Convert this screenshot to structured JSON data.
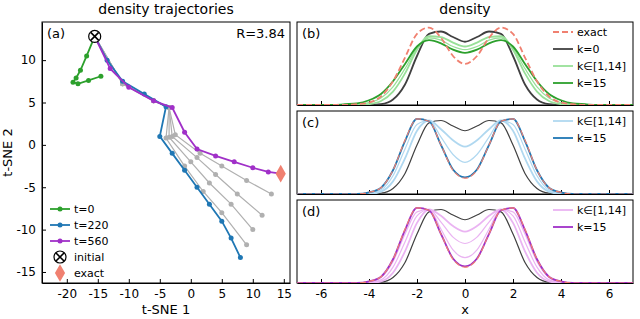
{
  "chart_data": [
    {
      "type": "line",
      "title": "density trajectories",
      "x_label": "t-SNE 1",
      "y_label": "t-SNE 2",
      "annotations": [
        "(a)",
        "R=3.84"
      ],
      "xlim": [
        -24,
        16
      ],
      "ylim": [
        -16.3,
        14.5
      ],
      "xticks": [
        -20,
        -15,
        -10,
        -5,
        0,
        5,
        10,
        15
      ],
      "yticks": [
        -15,
        -10,
        -5,
        0,
        5,
        10
      ],
      "legend": "lower left",
      "series": [
        {
          "color": "#b0b0b0",
          "marker": "circle",
          "x": [
            -15.5,
            -11,
            -6,
            -3.5,
            -4,
            -1,
            2,
            5,
            9
          ],
          "values": [
            12.8,
            7.2,
            5.2,
            4.4,
            0.8,
            -2.5,
            -5.5,
            -8,
            -11.8
          ]
        },
        {
          "color": "#b0b0b0",
          "marker": "circle",
          "x": [
            -15.5,
            -11,
            -6,
            -3.5,
            -3.5,
            0,
            3,
            6.5,
            10
          ],
          "values": [
            12.8,
            7.2,
            5.2,
            4.4,
            0.9,
            -2,
            -4.5,
            -7,
            -10
          ]
        },
        {
          "color": "#b0b0b0",
          "marker": "circle",
          "x": [
            -15.5,
            -11,
            -6,
            -3.5,
            -3,
            1,
            4,
            7.5,
            11.5
          ],
          "values": [
            12.8,
            7.2,
            5.2,
            4.4,
            1,
            -1.5,
            -3.5,
            -5.8,
            -8.3
          ]
        },
        {
          "color": "#b0b0b0",
          "marker": "circle",
          "x": [
            -15.5,
            -11,
            -6,
            -3.5,
            -2.5,
            1.5,
            5,
            9,
            13
          ],
          "values": [
            12.8,
            7.2,
            5.2,
            4.4,
            1.2,
            -1,
            -2.5,
            -4.2,
            -5.8
          ]
        },
        {
          "name": "t=0",
          "color": "#2ca02c",
          "marker": "circle",
          "x": [
            -15.5,
            -16.8,
            -17.8,
            -18.5,
            -19,
            -18.2,
            -16.5,
            -14.5
          ],
          "values": [
            12.8,
            10.5,
            8.8,
            7.9,
            7.4,
            7.2,
            7.6,
            8.1
          ]
        },
        {
          "name": "t=220",
          "color": "#1f77b4",
          "marker": "circle",
          "x": [
            -15.5,
            -13.5,
            -11,
            -7.5,
            -4,
            -5,
            -3,
            -1,
            1,
            3,
            5,
            6.5,
            8
          ],
          "values": [
            12.8,
            10,
            7.5,
            6,
            4.5,
            1,
            -1,
            -3,
            -5,
            -7,
            -9,
            -11,
            -13.3
          ]
        },
        {
          "name": "t=560",
          "color": "#a030c8",
          "marker": "circle",
          "x": [
            -15.5,
            -13,
            -10,
            -6,
            -3,
            -1,
            1,
            4,
            7,
            10,
            12.5,
            14.5
          ],
          "values": [
            12.8,
            9,
            6.8,
            5.2,
            4.4,
            1.5,
            -0.5,
            -1.3,
            -2,
            -2.7,
            -3.2,
            -3.4
          ]
        },
        {
          "name": "initial",
          "type": "scatter",
          "marker": "x",
          "color": "#000000",
          "x": [
            -15.5
          ],
          "values": [
            12.8
          ]
        },
        {
          "name": "exact",
          "type": "scatter",
          "marker": "diamond",
          "color": "#f08070",
          "x": [
            14.5
          ],
          "values": [
            -3.4
          ]
        }
      ]
    },
    {
      "type": "line",
      "title": "density",
      "annotations": [
        "(b)"
      ],
      "x": [
        -7,
        -6.5,
        -6,
        -5.5,
        -5,
        -4.5,
        -4,
        -3.5,
        -3,
        -2.5,
        -2,
        -1.5,
        -1,
        -0.5,
        0,
        0.5,
        1,
        1.5,
        2,
        2.5,
        3,
        3.5,
        4,
        4.5,
        5,
        5.5,
        6,
        6.5,
        7
      ],
      "xlim": [
        -7,
        7
      ],
      "ylim": [
        0,
        1.05
      ],
      "xticks": [
        -6,
        -4,
        -2,
        0,
        2,
        4,
        6
      ],
      "tick_labels": false,
      "legend": "upper right",
      "series": [
        {
          "name": "exact",
          "color": "#f08070",
          "line_style": "dashed",
          "values": [
            0,
            0,
            0,
            0,
            0,
            0.01,
            0.03,
            0.11,
            0.3,
            0.6,
            0.9,
            0.98,
            0.85,
            0.62,
            0.52,
            0.62,
            0.85,
            0.98,
            0.9,
            0.6,
            0.3,
            0.11,
            0.03,
            0.01,
            0,
            0,
            0,
            0,
            0
          ]
        },
        {
          "name": "k=0",
          "color": "#404040",
          "values": [
            0,
            0,
            0,
            0,
            0,
            0,
            0,
            0.01,
            0.07,
            0.26,
            0.62,
            0.9,
            0.93,
            0.86,
            0.8,
            0.86,
            0.93,
            0.9,
            0.62,
            0.26,
            0.07,
            0.01,
            0,
            0,
            0,
            0,
            0,
            0,
            0
          ]
        },
        {
          "name": "k∈[1,14]",
          "color": "#98e098",
          "values": [
            0,
            0,
            0,
            0,
            0,
            0,
            0.01,
            0.05,
            0.17,
            0.4,
            0.7,
            0.87,
            0.86,
            0.79,
            0.74,
            0.79,
            0.86,
            0.87,
            0.7,
            0.4,
            0.17,
            0.05,
            0.01,
            0,
            0,
            0,
            0,
            0,
            0
          ]
        },
        {
          "color": "#98e098",
          "values": [
            0,
            0,
            0,
            0,
            0,
            0.01,
            0.03,
            0.09,
            0.23,
            0.46,
            0.72,
            0.85,
            0.82,
            0.74,
            0.7,
            0.74,
            0.82,
            0.85,
            0.72,
            0.46,
            0.23,
            0.09,
            0.03,
            0.01,
            0,
            0,
            0,
            0,
            0
          ]
        },
        {
          "name": "k=15",
          "color": "#2ca02c",
          "values": [
            0,
            0,
            0,
            0,
            0.01,
            0.02,
            0.06,
            0.14,
            0.3,
            0.52,
            0.74,
            0.82,
            0.78,
            0.7,
            0.66,
            0.7,
            0.78,
            0.82,
            0.74,
            0.52,
            0.3,
            0.14,
            0.06,
            0.02,
            0.01,
            0,
            0,
            0,
            0
          ]
        }
      ]
    },
    {
      "type": "line",
      "annotations": [
        "(c)"
      ],
      "x": [
        -7,
        -6.5,
        -6,
        -5.5,
        -5,
        -4.5,
        -4,
        -3.5,
        -3,
        -2.5,
        -2,
        -1.5,
        -1,
        -0.5,
        0,
        0.5,
        1,
        1.5,
        2,
        2.5,
        3,
        3.5,
        4,
        4.5,
        5,
        5.5,
        6,
        6.5,
        7
      ],
      "xlim": [
        -7,
        7
      ],
      "ylim": [
        0,
        1.05
      ],
      "xticks": [
        -6,
        -4,
        -2,
        0,
        2,
        4,
        6
      ],
      "tick_labels": false,
      "legend": "upper right",
      "series": [
        {
          "color": "#f08070",
          "line_style": "dashed",
          "values": [
            0,
            0,
            0,
            0,
            0,
            0,
            0.02,
            0.08,
            0.3,
            0.68,
            0.95,
            0.92,
            0.62,
            0.3,
            0.2,
            0.3,
            0.62,
            0.92,
            0.95,
            0.68,
            0.3,
            0.08,
            0.02,
            0,
            0,
            0,
            0,
            0,
            0
          ]
        },
        {
          "color": "#404040",
          "values": [
            0,
            0,
            0,
            0,
            0,
            0,
            0,
            0.01,
            0.07,
            0.26,
            0.62,
            0.9,
            0.93,
            0.86,
            0.8,
            0.86,
            0.93,
            0.9,
            0.62,
            0.26,
            0.07,
            0.01,
            0,
            0,
            0,
            0,
            0,
            0,
            0
          ]
        },
        {
          "name": "k∈[1,14]",
          "color": "#b0d8f0",
          "values": [
            0,
            0,
            0,
            0,
            0,
            0,
            0,
            0.03,
            0.16,
            0.45,
            0.8,
            0.93,
            0.82,
            0.68,
            0.6,
            0.68,
            0.82,
            0.93,
            0.8,
            0.45,
            0.16,
            0.03,
            0,
            0,
            0,
            0,
            0,
            0,
            0
          ]
        },
        {
          "color": "#b0d8f0",
          "values": [
            0,
            0,
            0,
            0,
            0,
            0,
            0.01,
            0.05,
            0.23,
            0.57,
            0.88,
            0.93,
            0.72,
            0.5,
            0.4,
            0.5,
            0.72,
            0.93,
            0.88,
            0.57,
            0.23,
            0.05,
            0.01,
            0,
            0,
            0,
            0,
            0,
            0
          ]
        },
        {
          "name": "k=15",
          "color": "#1f77b4",
          "values": [
            0,
            0,
            0,
            0,
            0,
            0,
            0.02,
            0.08,
            0.3,
            0.67,
            0.95,
            0.92,
            0.62,
            0.31,
            0.21,
            0.31,
            0.62,
            0.92,
            0.95,
            0.67,
            0.3,
            0.08,
            0.02,
            0,
            0,
            0,
            0,
            0,
            0
          ]
        }
      ]
    },
    {
      "type": "line",
      "x_label": "x",
      "annotations": [
        "(d)"
      ],
      "x": [
        -7,
        -6.5,
        -6,
        -5.5,
        -5,
        -4.5,
        -4,
        -3.5,
        -3,
        -2.5,
        -2,
        -1.5,
        -1,
        -0.5,
        0,
        0.5,
        1,
        1.5,
        2,
        2.5,
        3,
        3.5,
        4,
        4.5,
        5,
        5.5,
        6,
        6.5,
        7
      ],
      "xlim": [
        -7,
        7
      ],
      "ylim": [
        0,
        1.05
      ],
      "xticks": [
        -6,
        -4,
        -2,
        0,
        2,
        4,
        6
      ],
      "tick_labels": "x",
      "legend": "upper right",
      "series": [
        {
          "color": "#f08070",
          "line_style": "dashed",
          "values": [
            0,
            0,
            0,
            0,
            0,
            0,
            0.02,
            0.08,
            0.3,
            0.68,
            0.95,
            0.92,
            0.62,
            0.3,
            0.2,
            0.3,
            0.62,
            0.92,
            0.95,
            0.68,
            0.3,
            0.08,
            0.02,
            0,
            0,
            0,
            0,
            0,
            0
          ]
        },
        {
          "color": "#404040",
          "values": [
            0,
            0,
            0,
            0,
            0,
            0,
            0,
            0.01,
            0.07,
            0.26,
            0.62,
            0.9,
            0.93,
            0.86,
            0.8,
            0.86,
            0.93,
            0.9,
            0.62,
            0.26,
            0.07,
            0.01,
            0,
            0,
            0,
            0,
            0,
            0,
            0
          ]
        },
        {
          "name": "k∈[1,14]",
          "color": "#eab4f2",
          "values": [
            0,
            0,
            0,
            0,
            0,
            0,
            0,
            0.02,
            0.13,
            0.4,
            0.76,
            0.93,
            0.85,
            0.72,
            0.65,
            0.72,
            0.85,
            0.93,
            0.76,
            0.4,
            0.13,
            0.02,
            0,
            0,
            0,
            0,
            0,
            0,
            0
          ]
        },
        {
          "color": "#eab4f2",
          "values": [
            0,
            0,
            0,
            0,
            0,
            0,
            0.01,
            0.04,
            0.2,
            0.52,
            0.85,
            0.93,
            0.77,
            0.58,
            0.5,
            0.58,
            0.77,
            0.93,
            0.85,
            0.52,
            0.2,
            0.04,
            0.01,
            0,
            0,
            0,
            0,
            0,
            0
          ]
        },
        {
          "color": "#eab4f2",
          "values": [
            0,
            0,
            0,
            0,
            0,
            0,
            0.01,
            0.07,
            0.27,
            0.62,
            0.9,
            0.93,
            0.68,
            0.42,
            0.32,
            0.42,
            0.68,
            0.93,
            0.9,
            0.62,
            0.27,
            0.07,
            0.01,
            0,
            0,
            0,
            0,
            0,
            0
          ]
        },
        {
          "name": "k=15",
          "color": "#a030c8",
          "values": [
            0,
            0,
            0,
            0,
            0,
            0,
            0.02,
            0.08,
            0.3,
            0.67,
            0.95,
            0.92,
            0.62,
            0.31,
            0.21,
            0.31,
            0.62,
            0.92,
            0.95,
            0.67,
            0.3,
            0.08,
            0.02,
            0,
            0,
            0,
            0,
            0,
            0
          ]
        }
      ]
    }
  ]
}
